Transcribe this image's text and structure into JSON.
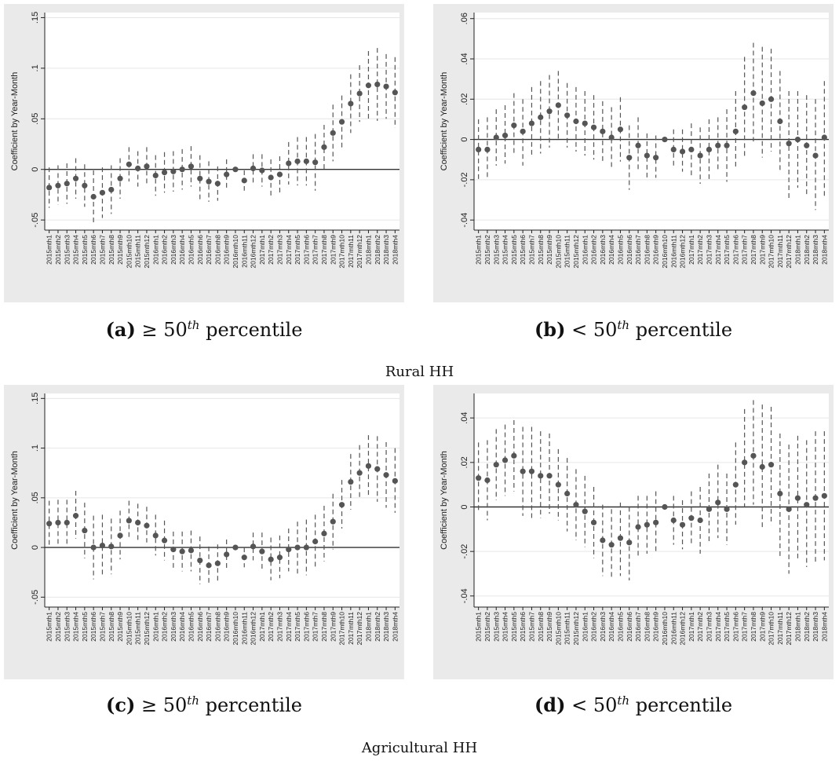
{
  "x_categories": [
    "2015mth1",
    "2015mth2",
    "2015mth3",
    "2015mth4",
    "2015mth5",
    "2015mth6",
    "2015mth7",
    "2015mth8",
    "2015mth9",
    "2015mth10",
    "2015mth11",
    "2015mth12",
    "2016mth1",
    "2016mth2",
    "2016mth3",
    "2016mth4",
    "2016mth5",
    "2016mth6",
    "2016mth7",
    "2016mth8",
    "2016mth9",
    "2016mth10",
    "2016mth11",
    "2016mth12",
    "2017mth1",
    "2017mth2",
    "2017mth3",
    "2017mth4",
    "2017mth5",
    "2017mth6",
    "2017mth7",
    "2017mth8",
    "2017mth9",
    "2017mth10",
    "2017mth11",
    "2017mth12",
    "2018mth1",
    "2018mth2",
    "2018mth3",
    "2018mth4"
  ],
  "groups": [
    {
      "label": "Rural HH"
    },
    {
      "label": "Agricultural HH"
    }
  ],
  "colors": {
    "panel_bg": "#eaeaea",
    "plot_bg": "#ffffff",
    "marker": "#555555",
    "ci": "#555555",
    "zero_line": "#333333",
    "grid": "#e6e6e6"
  },
  "chart_data": [
    {
      "type": "scatter",
      "caption": {
        "letter": "(a)",
        "rel": "≥ 50",
        "sup": "th",
        "rest": " percentile"
      },
      "ylabel": "Coefficient by Year-Month",
      "ylim": [
        -0.06,
        0.155
      ],
      "yticks": [
        -0.05,
        0,
        0.05,
        0.1,
        0.15
      ],
      "ytick_labels": [
        "-.05",
        "0",
        ".05",
        ".1",
        ".15"
      ],
      "grid": true,
      "point": [
        -0.018,
        -0.016,
        -0.014,
        -0.009,
        -0.016,
        -0.027,
        -0.023,
        -0.02,
        -0.009,
        0.005,
        0.001,
        0.003,
        -0.006,
        -0.003,
        -0.002,
        0.0,
        0.003,
        -0.009,
        -0.012,
        -0.014,
        -0.005,
        0.0,
        -0.011,
        0.001,
        -0.001,
        -0.008,
        -0.005,
        0.006,
        0.008,
        0.008,
        0.007,
        0.022,
        0.036,
        0.047,
        0.065,
        0.075,
        0.083,
        0.084,
        0.082,
        0.076
      ],
      "lower": [
        -0.038,
        -0.035,
        -0.034,
        -0.029,
        -0.037,
        -0.053,
        -0.048,
        -0.044,
        -0.029,
        -0.012,
        -0.017,
        -0.016,
        -0.026,
        -0.023,
        -0.022,
        -0.02,
        -0.017,
        -0.032,
        -0.032,
        -0.031,
        -0.02,
        0.0,
        -0.021,
        -0.013,
        -0.017,
        -0.026,
        -0.023,
        -0.015,
        -0.016,
        -0.016,
        -0.021,
        0.0,
        0.008,
        0.021,
        0.036,
        0.047,
        0.049,
        0.048,
        0.05,
        0.041
      ],
      "upper": [
        0.002,
        0.004,
        0.006,
        0.011,
        0.005,
        -0.001,
        0.002,
        0.004,
        0.011,
        0.022,
        0.018,
        0.022,
        0.014,
        0.017,
        0.018,
        0.02,
        0.023,
        0.014,
        0.008,
        0.003,
        0.01,
        0.0,
        -0.001,
        0.015,
        0.015,
        0.01,
        0.013,
        0.027,
        0.032,
        0.032,
        0.035,
        0.044,
        0.064,
        0.073,
        0.094,
        0.103,
        0.117,
        0.12,
        0.114,
        0.111
      ]
    },
    {
      "type": "scatter",
      "caption": {
        "letter": "(b)",
        "rel": "< 50",
        "sup": "th",
        "rest": " percentile"
      },
      "ylabel": "Coefficient by Year-Month",
      "ylim": [
        -0.045,
        0.063
      ],
      "yticks": [
        -0.04,
        -0.02,
        0,
        0.02,
        0.04,
        0.06
      ],
      "ytick_labels": [
        "-.04",
        "-.02",
        "0",
        ".02",
        ".04",
        ".06"
      ],
      "grid": true,
      "point": [
        -0.005,
        -0.005,
        0.001,
        0.002,
        0.007,
        0.004,
        0.008,
        0.011,
        0.014,
        0.017,
        0.012,
        0.009,
        0.008,
        0.006,
        0.004,
        0.001,
        0.005,
        -0.009,
        -0.003,
        -0.008,
        -0.009,
        0.0,
        -0.005,
        -0.006,
        -0.005,
        -0.008,
        -0.005,
        -0.003,
        -0.003,
        0.004,
        0.016,
        0.023,
        0.018,
        0.02,
        0.009,
        -0.002,
        0.0,
        -0.003,
        -0.008,
        0.001
      ],
      "lower": [
        -0.021,
        -0.02,
        -0.013,
        -0.012,
        -0.008,
        -0.013,
        -0.009,
        -0.007,
        -0.004,
        0.0,
        -0.004,
        -0.006,
        -0.008,
        -0.01,
        -0.011,
        -0.014,
        -0.011,
        -0.025,
        -0.016,
        -0.019,
        -0.019,
        0.0,
        -0.014,
        -0.016,
        -0.018,
        -0.022,
        -0.02,
        -0.016,
        -0.021,
        -0.015,
        -0.009,
        -0.001,
        -0.009,
        -0.006,
        -0.016,
        -0.029,
        -0.024,
        -0.028,
        -0.035,
        -0.028
      ],
      "upper": [
        0.01,
        0.011,
        0.015,
        0.017,
        0.023,
        0.02,
        0.026,
        0.029,
        0.032,
        0.034,
        0.028,
        0.026,
        0.024,
        0.022,
        0.019,
        0.016,
        0.021,
        0.007,
        0.011,
        0.003,
        0.002,
        0.0,
        0.005,
        0.005,
        0.008,
        0.006,
        0.01,
        0.011,
        0.015,
        0.024,
        0.041,
        0.048,
        0.046,
        0.045,
        0.034,
        0.024,
        0.024,
        0.022,
        0.02,
        0.029
      ]
    },
    {
      "type": "scatter",
      "caption": {
        "letter": "(c)",
        "rel": "≥ 50",
        "sup": "th",
        "rest": " percentile"
      },
      "ylabel": "Coefficient by Year-Month",
      "ylim": [
        -0.06,
        0.155
      ],
      "yticks": [
        -0.05,
        0,
        0.05,
        0.1,
        0.15
      ],
      "ytick_labels": [
        "-.05",
        "0",
        ".05",
        ".1",
        ".15"
      ],
      "grid": true,
      "point": [
        0.024,
        0.025,
        0.025,
        0.032,
        0.017,
        0.0,
        0.002,
        0.001,
        0.012,
        0.027,
        0.025,
        0.022,
        0.012,
        0.007,
        -0.002,
        -0.004,
        -0.003,
        -0.013,
        -0.018,
        -0.016,
        -0.007,
        0.0,
        -0.01,
        0.001,
        -0.004,
        -0.012,
        -0.01,
        -0.002,
        0.0,
        0.0,
        0.006,
        0.014,
        0.026,
        0.043,
        0.066,
        0.075,
        0.082,
        0.079,
        0.073,
        0.067
      ],
      "lower": [
        0.002,
        0.002,
        0.002,
        0.009,
        -0.011,
        -0.032,
        -0.029,
        -0.027,
        -0.012,
        0.009,
        0.007,
        0.005,
        -0.008,
        -0.013,
        -0.021,
        -0.024,
        -0.024,
        -0.037,
        -0.038,
        -0.035,
        -0.022,
        0.0,
        -0.02,
        -0.013,
        -0.023,
        -0.033,
        -0.031,
        -0.024,
        -0.027,
        -0.028,
        -0.02,
        -0.014,
        -0.002,
        0.019,
        0.038,
        0.048,
        0.052,
        0.046,
        0.04,
        0.035
      ],
      "upper": [
        0.047,
        0.048,
        0.048,
        0.057,
        0.045,
        0.032,
        0.033,
        0.029,
        0.037,
        0.047,
        0.044,
        0.041,
        0.033,
        0.027,
        0.016,
        0.016,
        0.017,
        0.011,
        0.001,
        0.003,
        0.008,
        0.0,
        0.0,
        0.015,
        0.015,
        0.01,
        0.012,
        0.019,
        0.026,
        0.028,
        0.033,
        0.042,
        0.054,
        0.068,
        0.094,
        0.103,
        0.113,
        0.112,
        0.106,
        0.1
      ]
    },
    {
      "type": "scatter",
      "caption": {
        "letter": "(d)",
        "rel": "< 50",
        "sup": "th",
        "rest": " percentile"
      },
      "ylabel": "Coefficient by Year-Month",
      "ylim": [
        -0.045,
        0.051
      ],
      "yticks": [
        -0.04,
        -0.02,
        0,
        0.02,
        0.04
      ],
      "ytick_labels": [
        "-.04",
        "-.02",
        "0",
        ".02",
        ".04"
      ],
      "grid": true,
      "point": [
        0.013,
        0.012,
        0.019,
        0.021,
        0.023,
        0.016,
        0.016,
        0.014,
        0.014,
        0.01,
        0.006,
        0.001,
        -0.002,
        -0.007,
        -0.015,
        -0.017,
        -0.014,
        -0.016,
        -0.009,
        -0.008,
        -0.007,
        0.0,
        -0.006,
        -0.008,
        -0.005,
        -0.006,
        -0.001,
        0.002,
        -0.001,
        0.01,
        0.02,
        0.023,
        0.018,
        0.019,
        0.006,
        -0.001,
        0.004,
        0.001,
        0.004,
        0.005
      ],
      "lower": [
        -0.002,
        -0.006,
        0.003,
        0.005,
        0.007,
        -0.004,
        -0.005,
        -0.005,
        -0.003,
        -0.006,
        -0.011,
        -0.015,
        -0.018,
        -0.023,
        -0.031,
        -0.032,
        -0.031,
        -0.033,
        -0.023,
        -0.021,
        -0.021,
        0.0,
        -0.017,
        -0.019,
        -0.017,
        -0.021,
        -0.016,
        -0.014,
        -0.017,
        -0.008,
        0.0,
        0.001,
        -0.01,
        -0.008,
        -0.022,
        -0.03,
        -0.024,
        -0.027,
        -0.025,
        -0.024
      ],
      "upper": [
        0.029,
        0.03,
        0.035,
        0.037,
        0.039,
        0.036,
        0.036,
        0.034,
        0.033,
        0.026,
        0.022,
        0.017,
        0.014,
        0.009,
        0.001,
        -0.001,
        0.002,
        0.0,
        0.005,
        0.005,
        0.007,
        0.0,
        0.005,
        0.003,
        0.007,
        0.009,
        0.015,
        0.019,
        0.015,
        0.029,
        0.044,
        0.048,
        0.046,
        0.045,
        0.033,
        0.028,
        0.032,
        0.03,
        0.034,
        0.034
      ]
    }
  ]
}
